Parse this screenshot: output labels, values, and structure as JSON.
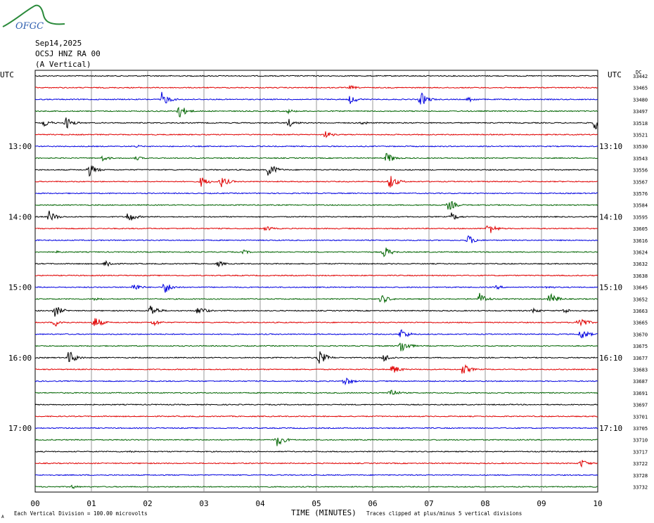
{
  "header": {
    "logo_text": "OFGC",
    "date": "Sep14,2025",
    "station": "OCSJ HNZ RA 00",
    "component": "(A Vertical)"
  },
  "labels": {
    "utc_left": "UTC",
    "utc_right": "UTC",
    "right_top": "DC",
    "x_axis_title": "TIME (MINUTES)",
    "footer_scale": "Each Vertical Division = 100.00 microvolts",
    "footer_clip": "Traces clipped at plus/minus 5 vertical divisions",
    "footer_mark": "A"
  },
  "colors": {
    "black": "#000000",
    "red": "#e00000",
    "blue": "#0000e0",
    "green": "#006400",
    "grid": "#808080",
    "logo": "#2a8a3a",
    "logo_text": "#3060b0"
  },
  "chart_data": {
    "type": "helicorder",
    "xlabel": "TIME (MINUTES)",
    "xlim": [
      0,
      10
    ],
    "x_ticks": [
      "00",
      "01",
      "02",
      "03",
      "04",
      "05",
      "06",
      "07",
      "08",
      "09",
      "10"
    ],
    "trace_color_cycle": [
      "black",
      "red",
      "blue",
      "green"
    ],
    "left_time_labels": [
      {
        "row": 6,
        "text": "13:00"
      },
      {
        "row": 12,
        "text": "14:00"
      },
      {
        "row": 18,
        "text": "15:00"
      },
      {
        "row": 24,
        "text": "16:00"
      },
      {
        "row": 30,
        "text": "17:00"
      }
    ],
    "right_time_labels": [
      {
        "row": 6,
        "text": "13:10"
      },
      {
        "row": 12,
        "text": "14:10"
      },
      {
        "row": 18,
        "text": "15:10"
      },
      {
        "row": 24,
        "text": "16:10"
      },
      {
        "row": 30,
        "text": "17:10"
      }
    ],
    "rows": [
      {
        "dc": "33442",
        "events": []
      },
      {
        "dc": "33465",
        "events": [
          [
            5.6,
            0.3
          ]
        ]
      },
      {
        "dc": "33480",
        "events": [
          [
            2.25,
            1.0
          ],
          [
            5.6,
            0.6
          ],
          [
            6.85,
            1.0
          ],
          [
            7.7,
            0.4
          ]
        ]
      },
      {
        "dc": "33497",
        "events": [
          [
            2.55,
            1.0
          ],
          [
            4.5,
            0.3
          ]
        ]
      },
      {
        "dc": "33518",
        "events": [
          [
            0.15,
            0.6
          ],
          [
            0.55,
            0.8
          ],
          [
            4.5,
            0.6
          ],
          [
            5.8,
            0.3
          ],
          [
            9.95,
            1.0
          ]
        ]
      },
      {
        "dc": "33521",
        "events": [
          [
            5.15,
            0.5
          ]
        ]
      },
      {
        "dc": "33530",
        "events": [
          [
            1.8,
            0.2
          ]
        ]
      },
      {
        "dc": "33543",
        "events": [
          [
            1.2,
            0.4
          ],
          [
            1.8,
            0.3
          ],
          [
            6.25,
            0.8
          ]
        ]
      },
      {
        "dc": "33556",
        "events": [
          [
            0.95,
            0.9
          ],
          [
            4.15,
            1.0
          ]
        ]
      },
      {
        "dc": "33567",
        "events": [
          [
            2.95,
            0.7
          ],
          [
            3.3,
            0.8
          ],
          [
            6.3,
            1.0
          ]
        ]
      },
      {
        "dc": "33576",
        "events": []
      },
      {
        "dc": "33584",
        "events": [
          [
            7.35,
            0.8
          ]
        ]
      },
      {
        "dc": "33595",
        "events": [
          [
            0.25,
            0.8
          ],
          [
            1.65,
            0.8
          ],
          [
            7.4,
            0.6
          ]
        ]
      },
      {
        "dc": "33605",
        "events": [
          [
            4.1,
            0.4
          ],
          [
            8.05,
            0.9
          ]
        ]
      },
      {
        "dc": "33616",
        "events": [
          [
            7.7,
            0.7
          ]
        ]
      },
      {
        "dc": "33624",
        "events": [
          [
            0.4,
            0.2
          ],
          [
            3.7,
            0.3
          ],
          [
            6.2,
            0.8
          ]
        ]
      },
      {
        "dc": "33632",
        "events": [
          [
            1.25,
            0.6
          ],
          [
            3.25,
            0.4
          ]
        ]
      },
      {
        "dc": "33638",
        "events": []
      },
      {
        "dc": "33645",
        "events": [
          [
            1.75,
            0.6
          ],
          [
            2.3,
            0.9
          ],
          [
            8.2,
            0.3
          ],
          [
            9.1,
            0.3
          ]
        ]
      },
      {
        "dc": "33652",
        "events": [
          [
            1.05,
            0.3
          ],
          [
            6.15,
            0.7
          ],
          [
            7.9,
            0.8
          ],
          [
            9.15,
            0.9
          ]
        ]
      },
      {
        "dc": "33663",
        "events": [
          [
            0.35,
            0.8
          ],
          [
            2.05,
            0.9
          ],
          [
            2.9,
            0.7
          ],
          [
            8.85,
            0.4
          ],
          [
            9.4,
            0.4
          ]
        ]
      },
      {
        "dc": "33665",
        "events": [
          [
            0.35,
            0.6
          ],
          [
            1.05,
            0.9
          ],
          [
            2.1,
            0.5
          ],
          [
            9.65,
            1.0
          ]
        ]
      },
      {
        "dc": "33670",
        "events": [
          [
            6.5,
            0.8
          ],
          [
            9.7,
            0.8
          ]
        ]
      },
      {
        "dc": "33675",
        "events": [
          [
            6.5,
            1.0
          ]
        ]
      },
      {
        "dc": "33677",
        "events": [
          [
            0.6,
            1.0
          ],
          [
            5.05,
            1.0
          ],
          [
            6.2,
            0.6
          ]
        ]
      },
      {
        "dc": "33683",
        "events": [
          [
            6.35,
            0.7
          ],
          [
            7.6,
            0.8
          ]
        ]
      },
      {
        "dc": "33687",
        "events": [
          [
            5.5,
            0.7
          ]
        ]
      },
      {
        "dc": "33691",
        "events": [
          [
            6.3,
            0.7
          ]
        ]
      },
      {
        "dc": "33697",
        "events": []
      },
      {
        "dc": "33701",
        "events": []
      },
      {
        "dc": "33705",
        "events": []
      },
      {
        "dc": "33710",
        "events": [
          [
            4.3,
            0.9
          ]
        ]
      },
      {
        "dc": "33717",
        "events": [
          [
            1.7,
            0.2
          ]
        ]
      },
      {
        "dc": "33722",
        "events": [
          [
            9.7,
            0.6
          ]
        ]
      },
      {
        "dc": "33728",
        "events": []
      },
      {
        "dc": "33732",
        "events": [
          [
            0.65,
            0.3
          ]
        ]
      }
    ]
  }
}
